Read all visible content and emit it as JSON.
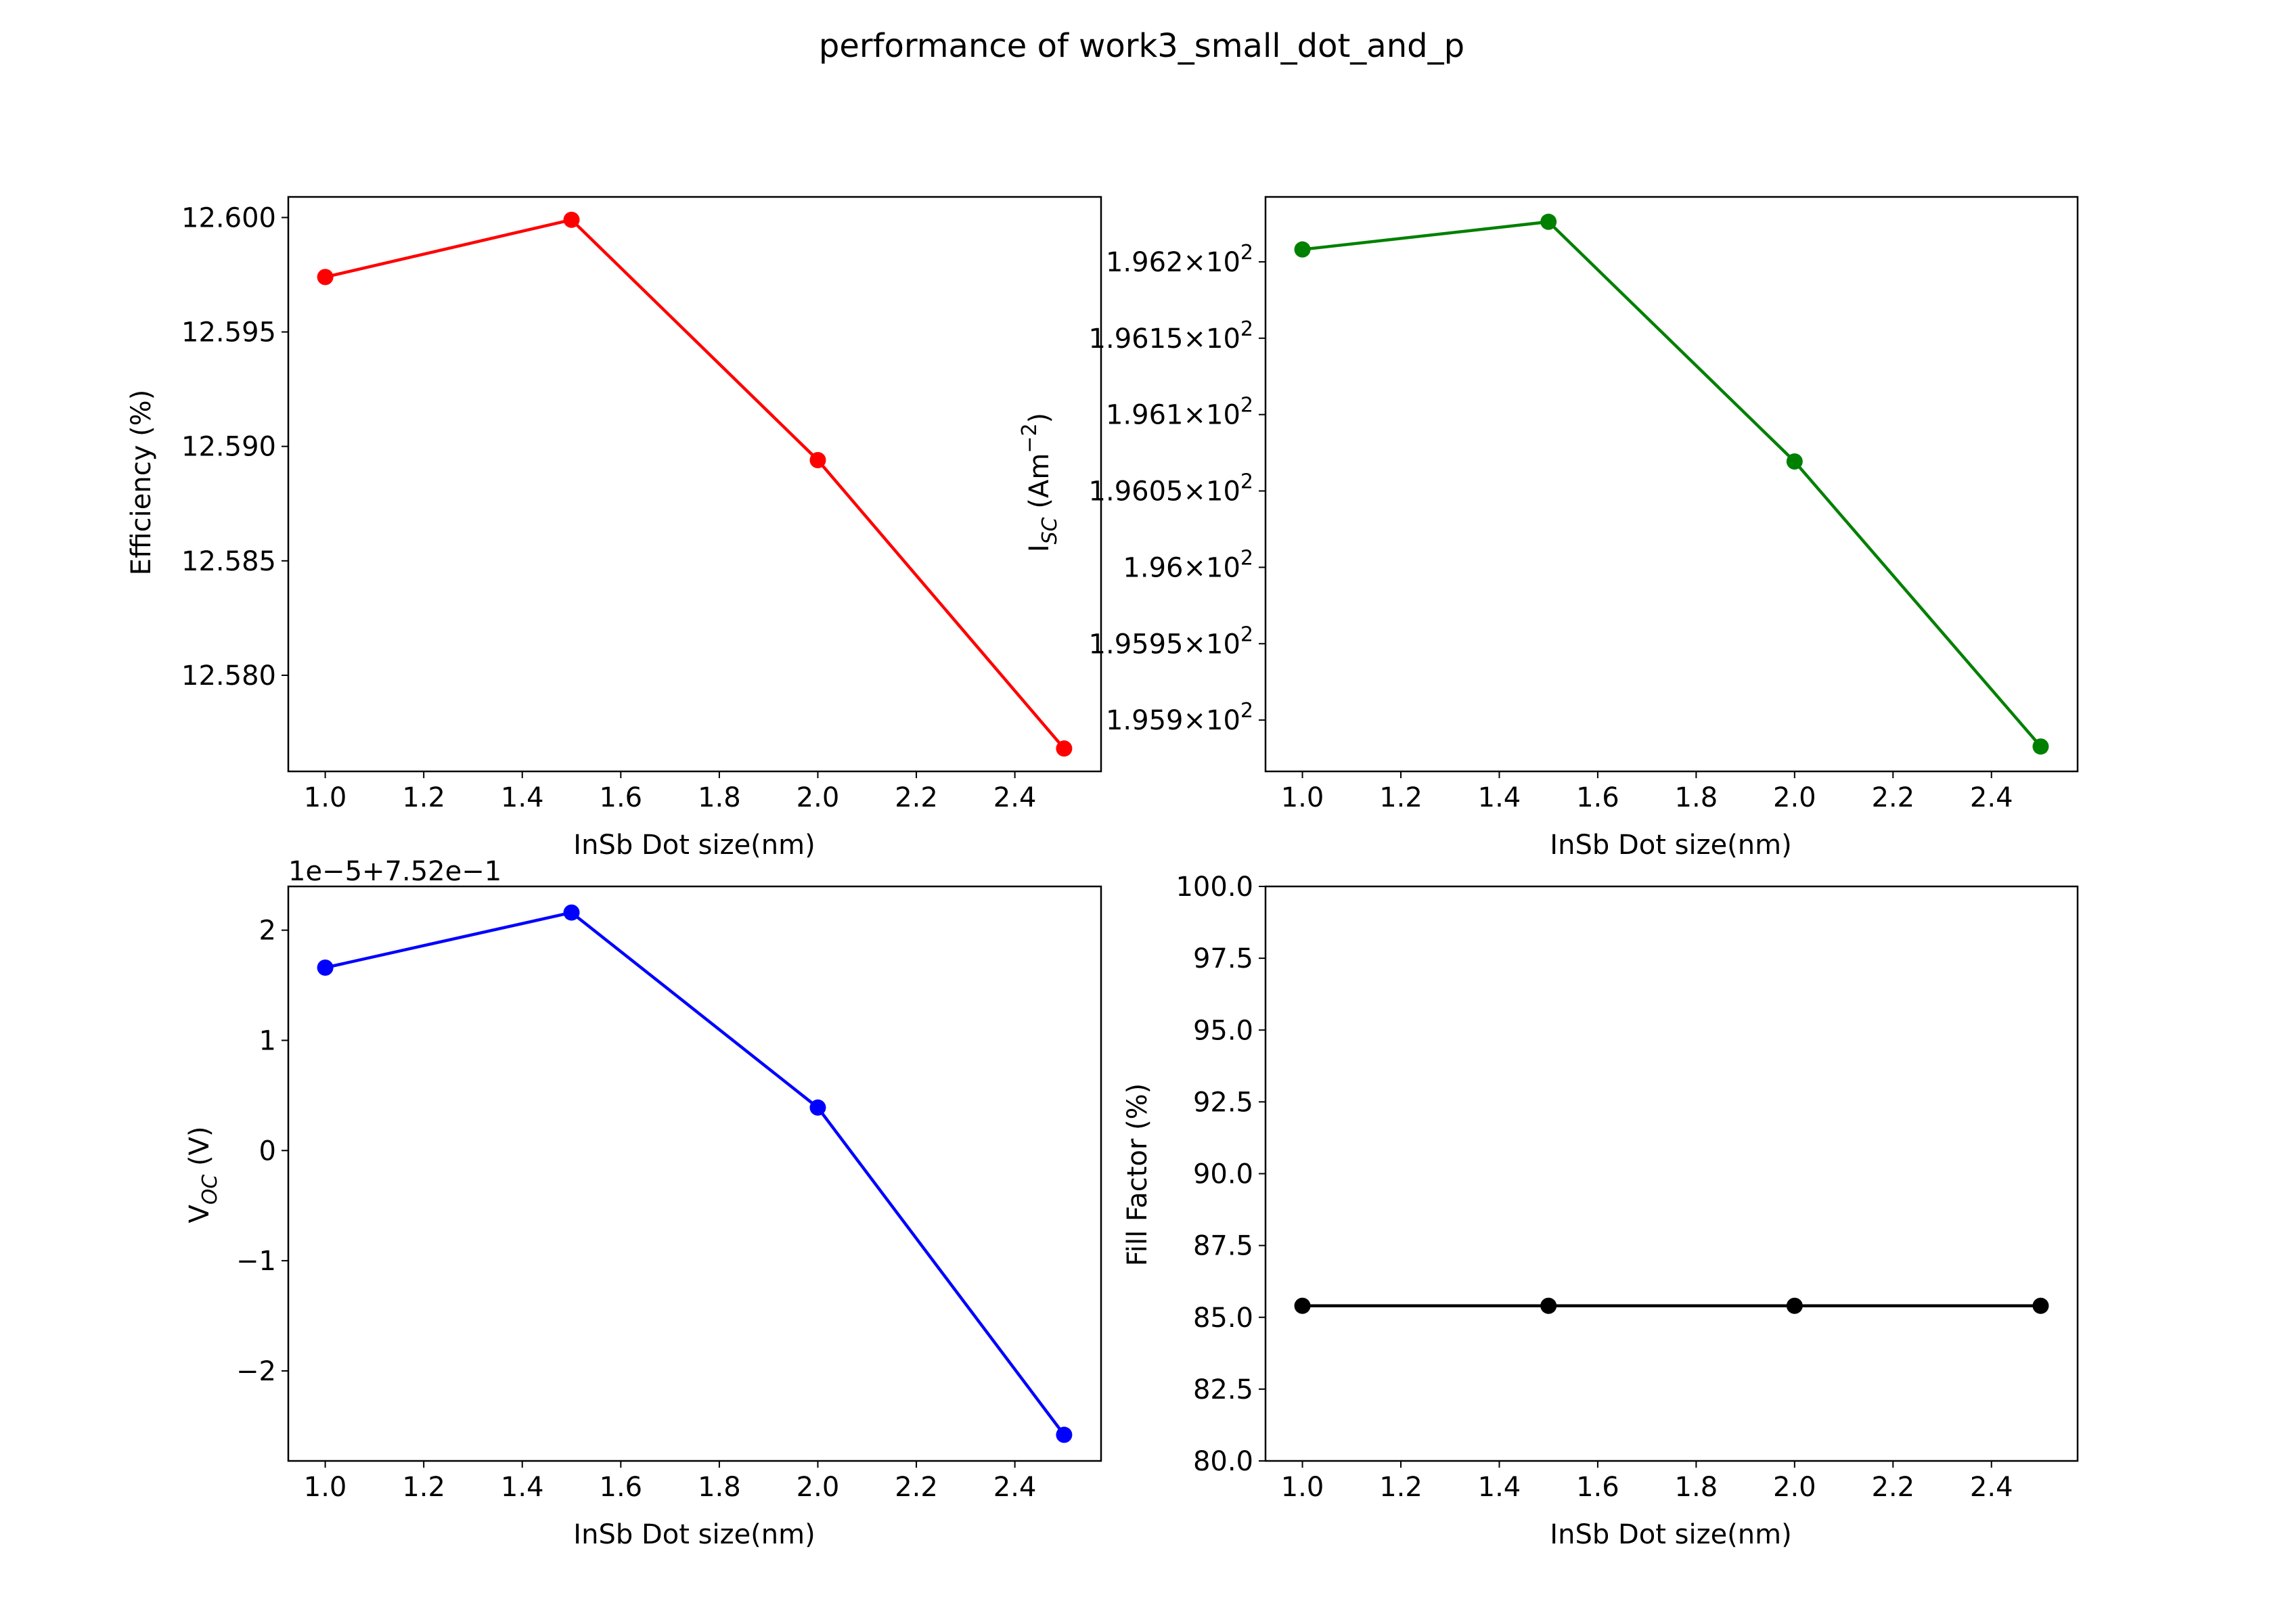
{
  "figure": {
    "title": "performance of work3_small_dot_and_p"
  },
  "chart_data": [
    {
      "type": "line",
      "x": [
        1.0,
        1.5,
        2.0,
        2.5
      ],
      "y": [
        12.5974,
        12.5999,
        12.5894,
        12.5768
      ],
      "xlabel": "InSb Dot size(nm)",
      "ylabel": "Efficiency (%)",
      "xlim": [
        0.925,
        2.575
      ],
      "ylim": [
        12.5758,
        12.6009
      ],
      "xticks": [
        "1.0",
        "1.2",
        "1.4",
        "1.6",
        "1.8",
        "2.0",
        "2.2",
        "2.4"
      ],
      "yticks": [
        "12.580",
        "12.585",
        "12.590",
        "12.595",
        "12.600"
      ],
      "color": "#ff0000",
      "grid": false
    },
    {
      "type": "line",
      "x": [
        1.0,
        1.5,
        2.0,
        2.5
      ],
      "y": [
        196.2081,
        196.2262,
        196.0693,
        195.8827
      ],
      "xlabel": "InSb Dot size(nm)",
      "ylabel": {
        "main": "I",
        "sub": "SC",
        "rest": " (Am",
        "sup": "−2",
        "end": ")"
      },
      "xlim": [
        0.925,
        2.575
      ],
      "ylim": [
        195.8664,
        196.2425
      ],
      "log_scale_y": true,
      "xticks": [
        "1.0",
        "1.2",
        "1.4",
        "1.6",
        "1.8",
        "2.0",
        "2.2",
        "2.4"
      ],
      "yticks": [
        {
          "mantissa": "1.959",
          "base": "10",
          "exp": "2"
        },
        {
          "mantissa": "1.9595",
          "base": "10",
          "exp": "2"
        },
        {
          "mantissa": "1.96",
          "base": "10",
          "exp": "2"
        },
        {
          "mantissa": "1.9605",
          "base": "10",
          "exp": "2"
        },
        {
          "mantissa": "1.961",
          "base": "10",
          "exp": "2"
        },
        {
          "mantissa": "1.9615",
          "base": "10",
          "exp": "2"
        },
        {
          "mantissa": "1.962",
          "base": "10",
          "exp": "2"
        }
      ],
      "color": "#008000",
      "grid": false
    },
    {
      "type": "line",
      "x": [
        1.0,
        1.5,
        2.0,
        2.5
      ],
      "y": [
        1.66,
        2.16,
        0.39,
        -2.58
      ],
      "offset_text": "1e−5+7.52e−1",
      "xlabel": "InSb Dot size(nm)",
      "ylabel": {
        "main": "V",
        "sub": "OC",
        "rest": " (V)"
      },
      "xlim": [
        0.925,
        2.575
      ],
      "ylim": [
        -2.817,
        2.397
      ],
      "xticks": [
        "1.0",
        "1.2",
        "1.4",
        "1.6",
        "1.8",
        "2.0",
        "2.2",
        "2.4"
      ],
      "yticks": [
        "−2",
        "−1",
        "0",
        "1",
        "2"
      ],
      "color": "#0000ff",
      "grid": false
    },
    {
      "type": "line",
      "x": [
        1.0,
        1.5,
        2.0,
        2.5
      ],
      "y": [
        85.4,
        85.4,
        85.4,
        85.4
      ],
      "xlabel": "InSb Dot size(nm)",
      "ylabel": "Fill Factor (%)",
      "xlim": [
        0.925,
        2.575
      ],
      "ylim": [
        80.0,
        100.0
      ],
      "xticks": [
        "1.0",
        "1.2",
        "1.4",
        "1.6",
        "1.8",
        "2.0",
        "2.2",
        "2.4"
      ],
      "yticks": [
        "80.0",
        "82.5",
        "85.0",
        "87.5",
        "90.0",
        "92.5",
        "95.0",
        "97.5",
        "100.0"
      ],
      "color": "#000000",
      "grid": false
    }
  ]
}
